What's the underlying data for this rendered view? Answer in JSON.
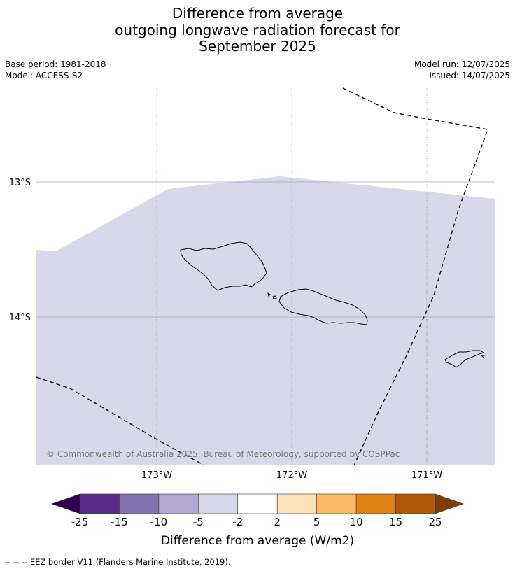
{
  "title": {
    "line1": "Difference from average",
    "line2": "outgoing longwave radiation forecast for",
    "line3": "September 2025"
  },
  "meta": {
    "base_period": "Base period: 1981-2018",
    "model": "Model: ACCESS-S2",
    "model_run": "Model run: 12/07/2025",
    "issued": "Issued: 14/07/2025"
  },
  "map": {
    "lat_labels": [
      "13°S",
      "14°S"
    ],
    "lon_labels": [
      "173°W",
      "172°W",
      "171°W"
    ],
    "field_color": "#d8d8ea",
    "credit": "© Commonwealth of Australia 2025, Bureau of Meteorology, supported by COSPPac"
  },
  "colorbar": {
    "ticks": [
      "-25",
      "-15",
      "-10",
      "-5",
      "-2",
      "2",
      "5",
      "10",
      "15",
      "25"
    ],
    "colors": [
      "#5c2a8c",
      "#8573b0",
      "#b2aad4",
      "#d8d8ea",
      "#ffffff",
      "#fee0b6",
      "#fdb863",
      "#e08214",
      "#b35806"
    ],
    "under_color": "#2d004b",
    "over_color": "#7f3b08",
    "label": "Difference from average (W/m2)"
  },
  "footnote": "--  --  -- EEZ border V11 (Flanders Marine Institute, 2019)."
}
